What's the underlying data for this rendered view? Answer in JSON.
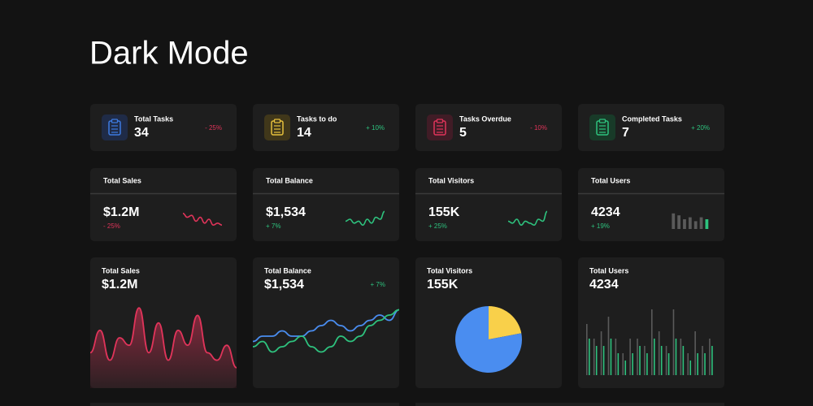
{
  "header": {
    "title": "Dark Mode"
  },
  "tasks": [
    {
      "label": "Total Tasks",
      "value": 34,
      "change": "- 25%",
      "color": "#3d7be0",
      "icon_bg": "#1f2b47",
      "change_color": "#e0345a"
    },
    {
      "label": "Tasks to do",
      "value": 14,
      "change": "+ 10%",
      "color": "#e6c03c",
      "icon_bg": "#40371a",
      "change_color": "#2ec27e"
    },
    {
      "label": "Tasks Overdue",
      "value": 5,
      "change": "- 10%",
      "color": "#e0345a",
      "icon_bg": "#401c26",
      "change_color": "#e0345a"
    },
    {
      "label": "Completed Tasks",
      "value": 7,
      "change": "+ 20%",
      "color": "#2ec27e",
      "icon_bg": "#183a28",
      "change_color": "#2ec27e"
    }
  ],
  "stats": [
    {
      "label": "Total Sales",
      "value": "$1.2M",
      "change": "- 25%",
      "change_color": "#e0345a",
      "chart": {
        "type": "line",
        "ylim": [
          0,
          10
        ],
        "series": [
          {
            "color": "#e0345a",
            "values": [
              8,
              6,
              7,
              4,
              6,
              3,
              5,
              2,
              3,
              2
            ]
          }
        ]
      }
    },
    {
      "label": "Total Balance",
      "value": "$1,534",
      "change": "+ 7%",
      "change_color": "#2ec27e",
      "chart": {
        "type": "line",
        "ylim": [
          0,
          10
        ],
        "series": [
          {
            "color": "#2ec27e",
            "values": [
              4,
              5,
              3,
              4,
              2,
              5,
              3,
              6,
              5,
              9
            ]
          }
        ]
      }
    },
    {
      "label": "Total Visitors",
      "value": "155K",
      "change": "+ 25%",
      "change_color": "#2ec27e",
      "chart": {
        "type": "line",
        "ylim": [
          0,
          10
        ],
        "series": [
          {
            "color": "#2ec27e",
            "values": [
              4,
              3,
              5,
              2,
              4,
              3,
              2,
              5,
              4,
              9
            ]
          }
        ]
      }
    },
    {
      "label": "Total Users",
      "value": 4234,
      "change": "+ 19%",
      "change_color": "#2ec27e",
      "chart": {
        "type": "bar",
        "ylim": [
          0,
          10
        ],
        "values": [
          8,
          7,
          5,
          6,
          4,
          6,
          5
        ],
        "colors": [
          "#5a5a5a",
          "#5a5a5a",
          "#5a5a5a",
          "#5a5a5a",
          "#5a5a5a",
          "#5a5a5a",
          "#2ec27e"
        ]
      }
    }
  ],
  "charts": [
    {
      "label": "Total Sales",
      "value": "$1.2M",
      "chart": {
        "type": "area",
        "ylim": [
          0,
          10
        ],
        "series": [
          {
            "color": "#e0345a",
            "values": [
              3,
              6,
              2,
              5,
              4,
              9,
              3,
              7,
              2,
              6,
              4,
              8,
              3,
              2,
              4,
              1
            ]
          }
        ]
      }
    },
    {
      "label": "Total Balance",
      "value": "$1,534",
      "change": "+ 7%",
      "change_color": "#2ec27e",
      "chart": {
        "type": "line",
        "ylim": [
          0,
          10
        ],
        "series": [
          {
            "color": "#4a8df0",
            "values": [
              3,
              4,
              4,
              5,
              4,
              4,
              5,
              6,
              7,
              6,
              5,
              6,
              7,
              8,
              7,
              9
            ]
          },
          {
            "color": "#2ec27e",
            "values": [
              2,
              3,
              1,
              2,
              3,
              4,
              2,
              1,
              2,
              4,
              3,
              4,
              6,
              7,
              8,
              9
            ]
          }
        ]
      }
    },
    {
      "label": "Total Visitors",
      "value": "155K",
      "chart": {
        "type": "pie",
        "values": [
          22,
          78
        ],
        "colors": [
          "#f9d04a",
          "#4a8df0"
        ]
      }
    },
    {
      "label": "Total Users",
      "value": 4234,
      "chart": {
        "type": "bar",
        "ylim": [
          0,
          10
        ],
        "series": [
          {
            "color": "#5a5a5a",
            "values": [
              7,
              5,
              6,
              8,
              5,
              3,
              5,
              5,
              4,
              9,
              6,
              4,
              9,
              5,
              3,
              6,
              4,
              5
            ]
          },
          {
            "color": "#2ec27e",
            "values": [
              5,
              4,
              4,
              5,
              3,
              2,
              3,
              4,
              3,
              5,
              4,
              3,
              5,
              4,
              2,
              3,
              3,
              4
            ]
          }
        ]
      }
    }
  ]
}
